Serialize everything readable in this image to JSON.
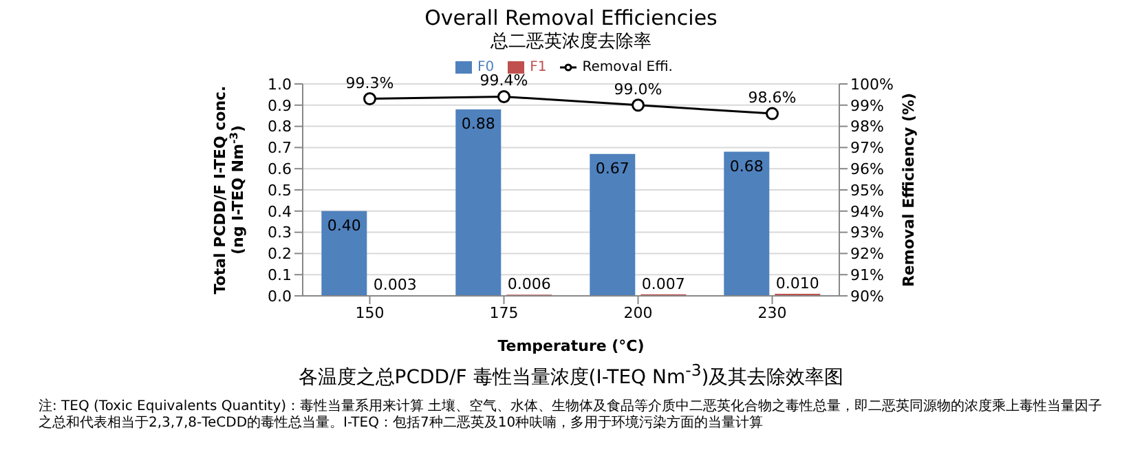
{
  "chart_data": {
    "type": "bar",
    "title": "Overall Removal Efficiencies",
    "subtitle": "总二恶英浓度去除率",
    "xlabel": "Temperature (°C)",
    "ylabel": "Total PCDD/F I-TEQ conc. (ng I-TEQ Nm$^{-3}$)",
    "y2label": "Removal Efficiency (%)",
    "categories": [
      "150",
      "175",
      "200",
      "230"
    ],
    "series": [
      {
        "name": "F0",
        "color": "#4f81bd",
        "values": [
          0.4,
          0.88,
          0.67,
          0.68
        ],
        "value_labels": [
          "0.40",
          "0.88",
          "0.67",
          "0.68"
        ]
      },
      {
        "name": "F1",
        "color": "#c0504d",
        "values": [
          0.003,
          0.006,
          0.007,
          0.01
        ],
        "value_labels": [
          "0.003",
          "0.006",
          "0.007",
          "0.010"
        ]
      },
      {
        "name": "Removal Effi.",
        "type": "line",
        "axis": "y2",
        "color": "#000000",
        "marker": "circle",
        "values": [
          99.3,
          99.4,
          99.0,
          98.6
        ],
        "value_labels": [
          "99.3%",
          "99.4%",
          "99.0%",
          "98.6%"
        ]
      }
    ],
    "ylim": [
      0,
      1
    ],
    "yticks": [
      {
        "value": 0,
        "label": "0.0"
      },
      {
        "value": 0.1,
        "label": "0.1"
      },
      {
        "value": 0.2,
        "label": "0.2"
      },
      {
        "value": 0.3,
        "label": "0.3"
      },
      {
        "value": 0.4,
        "label": "0.4"
      },
      {
        "value": 0.5,
        "label": "0.5"
      },
      {
        "value": 0.6,
        "label": "0.6"
      },
      {
        "value": 0.7,
        "label": "0.7"
      },
      {
        "value": 0.8,
        "label": "0.8"
      },
      {
        "value": 0.9,
        "label": "0.9"
      },
      {
        "value": 1,
        "label": "1.0"
      }
    ],
    "y2lim": [
      90,
      100
    ],
    "y2ticks": [
      {
        "value": 90,
        "label": "90%"
      },
      {
        "value": 91,
        "label": "91%"
      },
      {
        "value": 92,
        "label": "92%"
      },
      {
        "value": 93,
        "label": "93%"
      },
      {
        "value": 94,
        "label": "94%"
      },
      {
        "value": 95,
        "label": "95%"
      },
      {
        "value": 96,
        "label": "96%"
      },
      {
        "value": 97,
        "label": "97%"
      },
      {
        "value": 98,
        "label": "98%"
      },
      {
        "value": 99,
        "label": "99%"
      },
      {
        "value": 100,
        "label": "100%"
      }
    ],
    "grid": "y",
    "legend": "top",
    "annotations": [
      "各温度之总PCDD/F 毒性当量浓度(I-TEQ Nm$^{-3}$)及其去除效率图",
      "注: TEQ (Toxic Equivalents Quantity)：毒性当量系用来计算 土壤、空气、水体、生物体及食品等介质中二恶英化合物之毒性总量，即二恶英同源物的浓度乘上毒性当量因子之总和代表相当于2,3,7,8-TeCDD的毒性总当量。I-TEQ：包括7种二恶英及10种呋喃，多用于环境污染方面的当量计算"
    ]
  }
}
